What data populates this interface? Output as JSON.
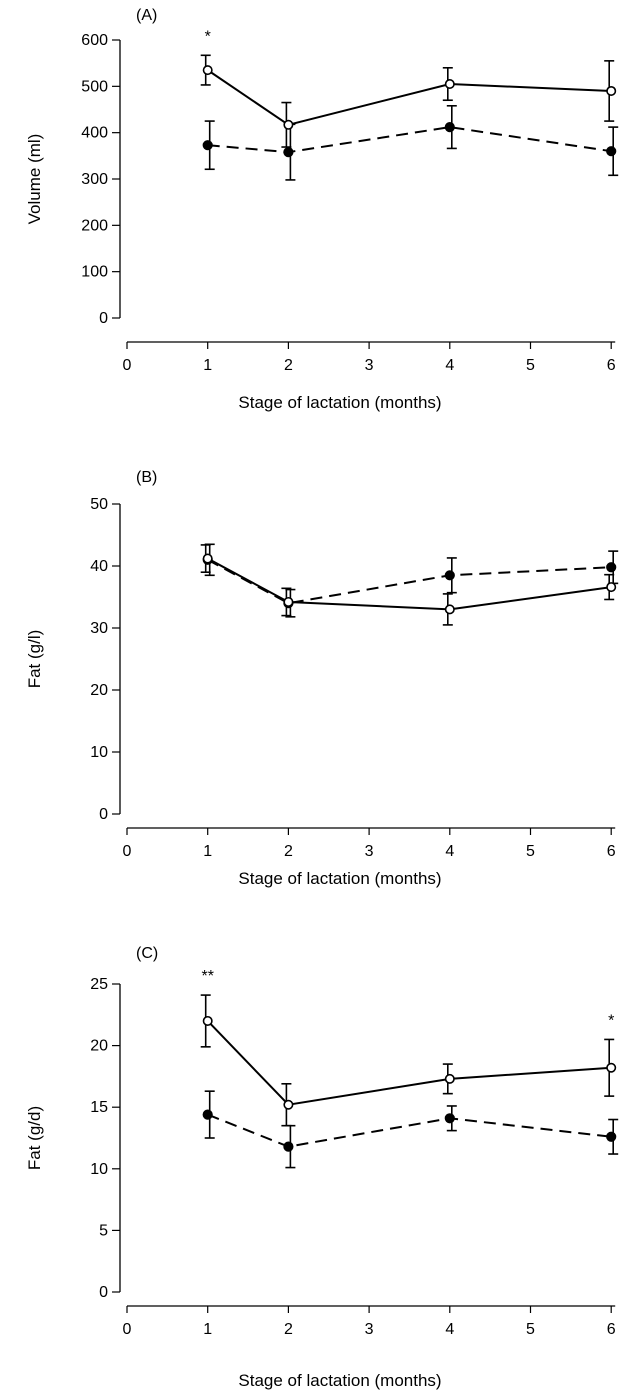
{
  "chart_data": [
    {
      "type": "line",
      "panel_label": "(A)",
      "title": "",
      "xlabel": "Stage of lactation (months)",
      "ylabel": "Volume (ml)",
      "xlim": [
        0,
        6
      ],
      "ylim": [
        0,
        600
      ],
      "x_ticks": [
        "0",
        "1",
        "2",
        "3",
        "4",
        "5",
        "6"
      ],
      "y_ticks": [
        "0",
        "100",
        "200",
        "300",
        "400",
        "500",
        "600"
      ],
      "x": [
        1,
        2,
        4,
        6
      ],
      "series": [
        {
          "style": "solid",
          "marker": "open-circle",
          "values": [
            535,
            417,
            505,
            490
          ],
          "error": [
            32,
            48,
            35,
            65
          ]
        },
        {
          "style": "dashed",
          "marker": "filled-circle",
          "values": [
            373,
            358,
            412,
            360
          ],
          "error": [
            52,
            60,
            46,
            52
          ]
        }
      ],
      "annotations": [
        {
          "text": "*",
          "x": 1
        }
      ]
    },
    {
      "type": "line",
      "panel_label": "(B)",
      "title": "",
      "xlabel": "Stage of lactation (months)",
      "ylabel": "Fat (g/l)",
      "xlim": [
        0,
        6
      ],
      "ylim": [
        0,
        50
      ],
      "x_ticks": [
        "0",
        "1",
        "2",
        "3",
        "4",
        "5",
        "6"
      ],
      "y_ticks": [
        "0",
        "10",
        "20",
        "30",
        "40",
        "50"
      ],
      "x": [
        1,
        2,
        4,
        6
      ],
      "series": [
        {
          "style": "solid",
          "marker": "open-circle",
          "values": [
            41.2,
            34.2,
            33.0,
            36.6
          ],
          "error": [
            2.2,
            2.2,
            2.5,
            2.0
          ]
        },
        {
          "style": "dashed",
          "marker": "filled-circle",
          "values": [
            41.0,
            34.0,
            38.5,
            39.8
          ],
          "error": [
            2.5,
            2.2,
            2.8,
            2.6
          ]
        }
      ],
      "annotations": []
    },
    {
      "type": "line",
      "panel_label": "(C)",
      "title": "",
      "xlabel": "Stage of lactation (months)",
      "ylabel": "Fat (g/d)",
      "xlim": [
        0,
        6
      ],
      "ylim": [
        0,
        25
      ],
      "x_ticks": [
        "0",
        "1",
        "2",
        "3",
        "4",
        "5",
        "6"
      ],
      "y_ticks": [
        "0",
        "5",
        "10",
        "15",
        "20",
        "25"
      ],
      "x": [
        1,
        2,
        4,
        6
      ],
      "series": [
        {
          "style": "solid",
          "marker": "open-circle",
          "values": [
            22.0,
            15.2,
            17.3,
            18.2
          ],
          "error": [
            2.1,
            1.7,
            1.2,
            2.3
          ]
        },
        {
          "style": "dashed",
          "marker": "filled-circle",
          "values": [
            14.4,
            11.8,
            14.1,
            12.6
          ],
          "error": [
            1.9,
            1.7,
            1.0,
            1.4
          ]
        }
      ],
      "annotations": [
        {
          "text": "**",
          "x": 1
        },
        {
          "text": "*",
          "x": 6
        }
      ]
    }
  ]
}
